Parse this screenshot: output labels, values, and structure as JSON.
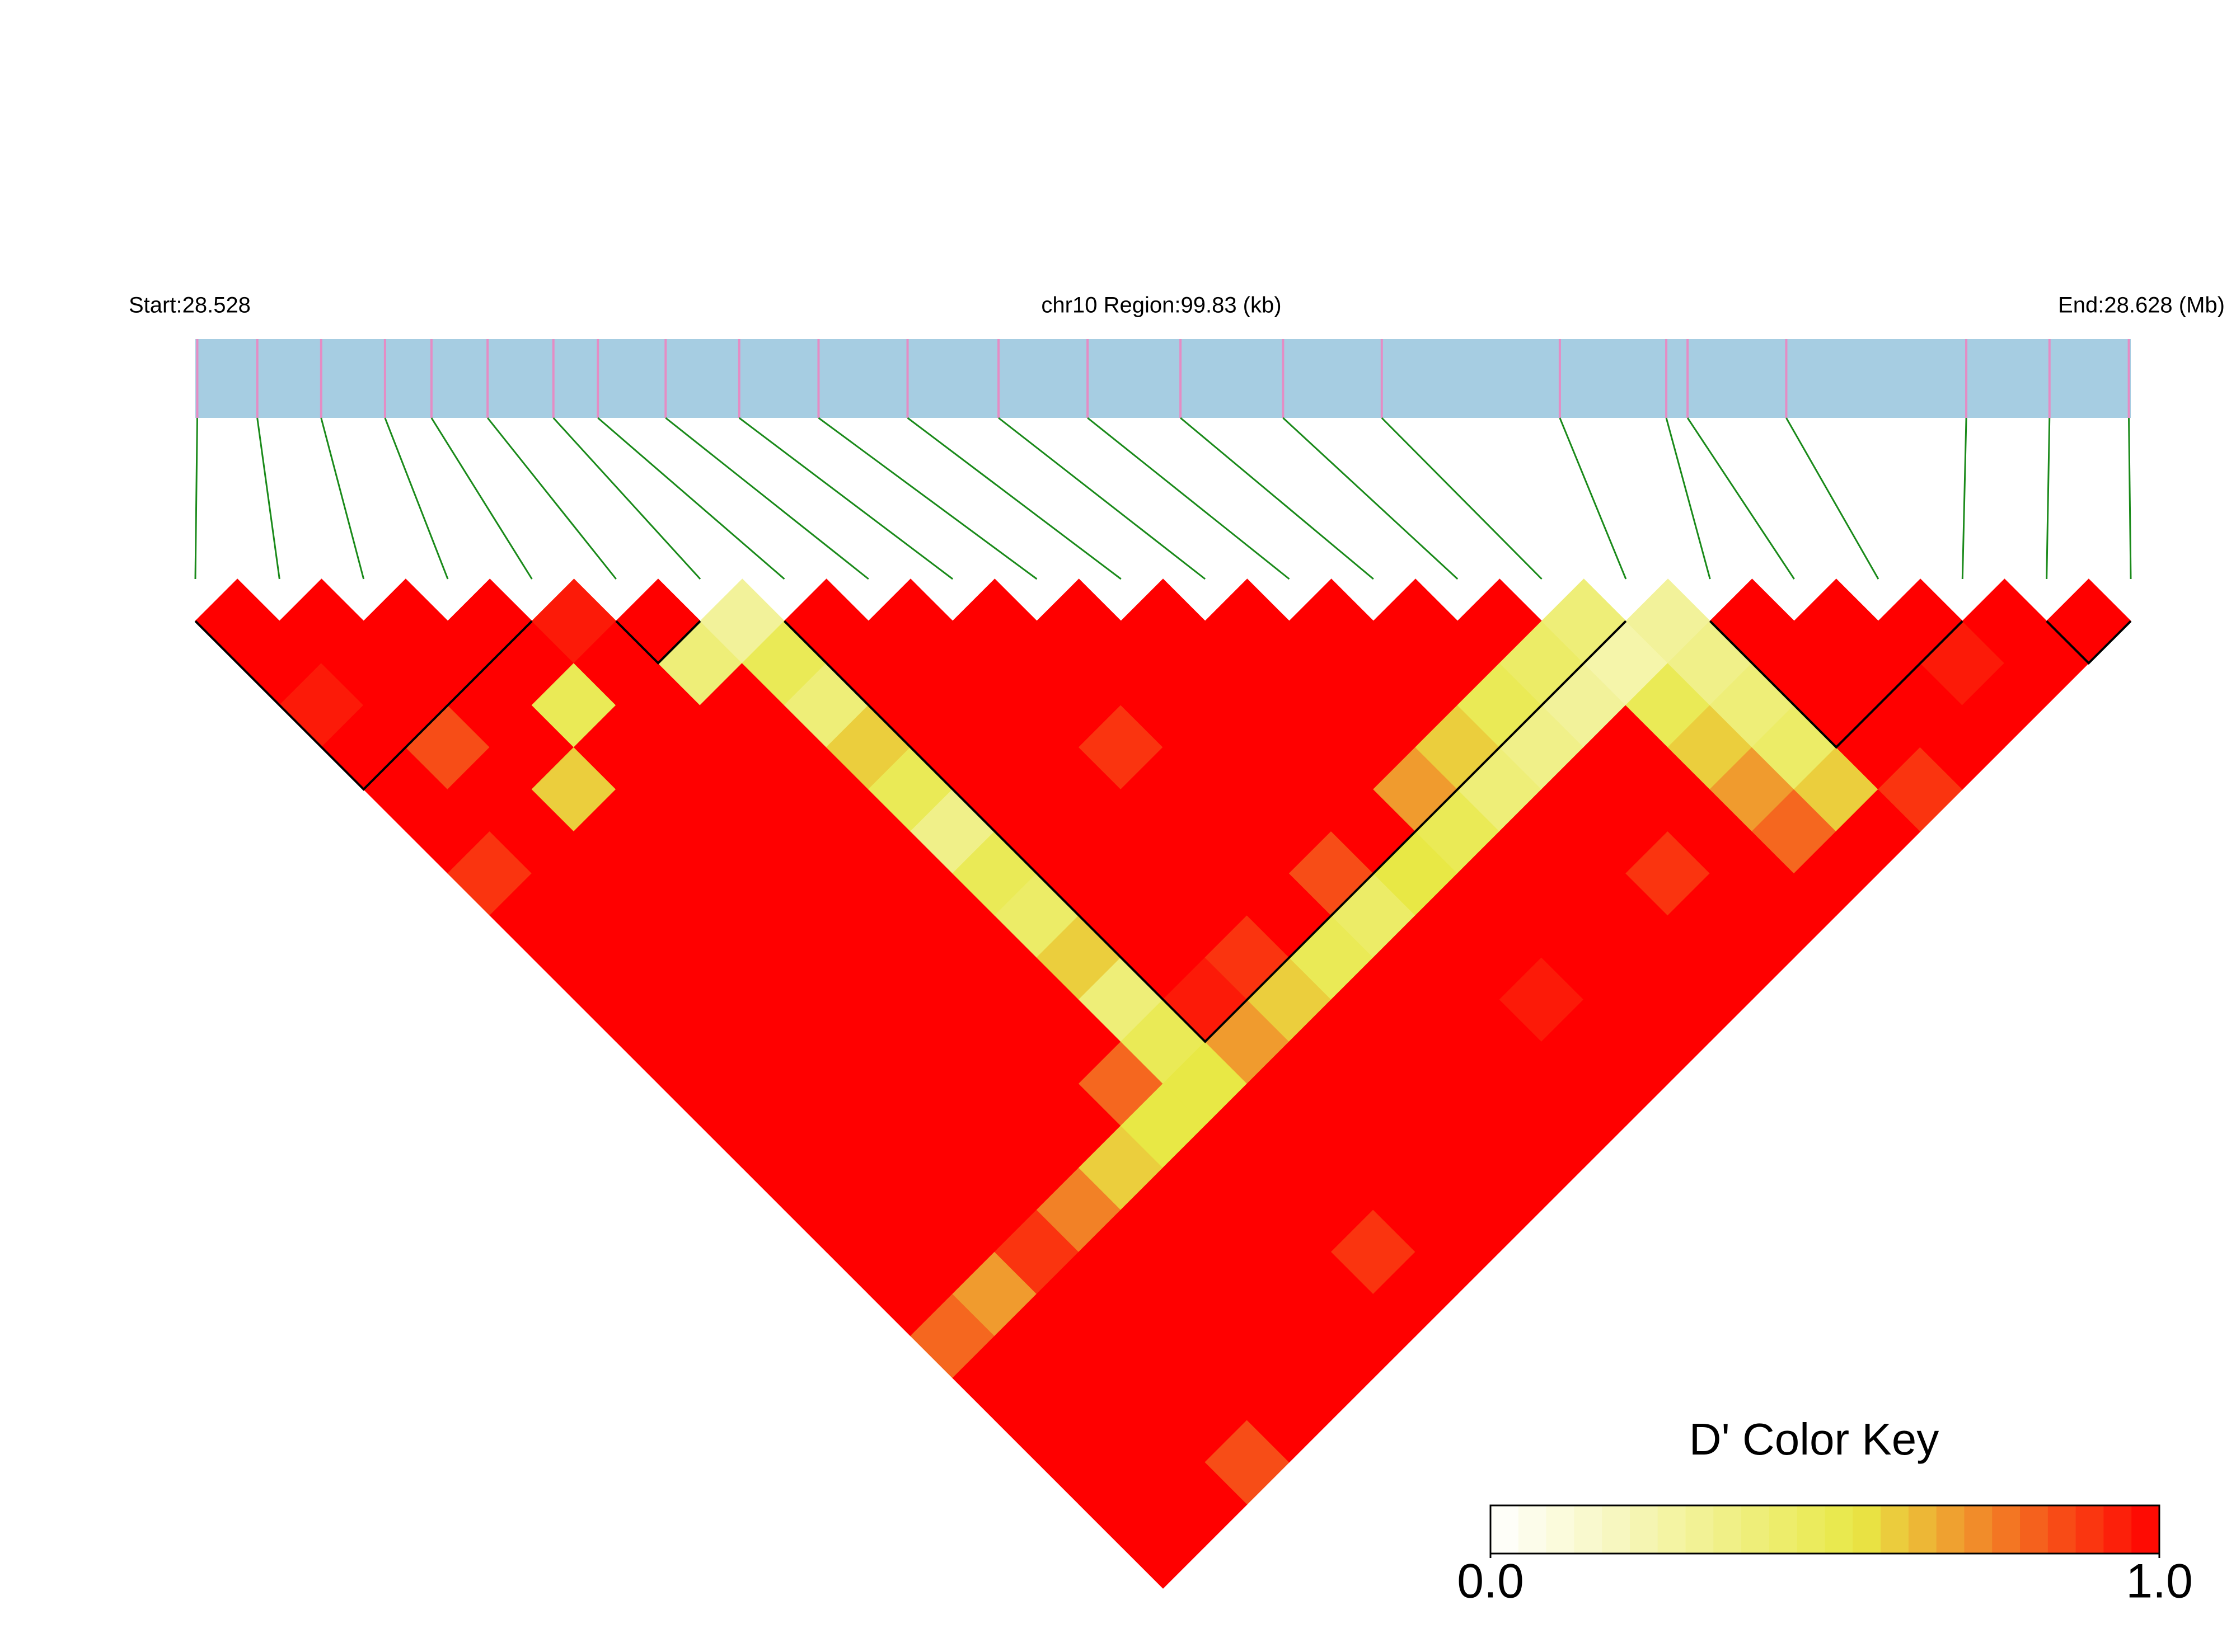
{
  "chart_data": {
    "type": "ld_heatmap",
    "start_label": "Start:28.528",
    "region_label": "chr10 Region:99.83 (kb)",
    "end_label": "End:28.628 (Mb)",
    "xlim": [
      28.528,
      28.628
    ],
    "track_color": "#a6cde2",
    "snp_color": "#e58cc4",
    "link_color": "#1a8a1a",
    "block_color": "#000000",
    "snp_positions": [
      28.5281,
      28.5312,
      28.5345,
      28.5378,
      28.5402,
      28.5431,
      28.5465,
      28.5488,
      28.5523,
      28.5561,
      28.5602,
      28.5648,
      28.5695,
      28.5741,
      28.5789,
      28.5842,
      28.5893,
      28.5985,
      28.604,
      28.6051,
      28.6102,
      28.6195,
      28.6238,
      28.6279
    ],
    "ld": [
      [
        1,
        1,
        0.95,
        1,
        1,
        1,
        0.9,
        1,
        1,
        1,
        1,
        1,
        1,
        1,
        1,
        1,
        1,
        0.8,
        1,
        1,
        1,
        1,
        1
      ],
      [
        1,
        1,
        1,
        0.85,
        1,
        1,
        1,
        1,
        1,
        1,
        1,
        1,
        1,
        1,
        1,
        1,
        0.7,
        1,
        1,
        1,
        1,
        1
      ],
      [
        1,
        1,
        1,
        1,
        0.6,
        1,
        1,
        1,
        1,
        1,
        1,
        1,
        1,
        1,
        1,
        0.9,
        1,
        1,
        1,
        1,
        0.85
      ],
      [
        1,
        1,
        0.5,
        1,
        1,
        1,
        1,
        1,
        1,
        1,
        1,
        1,
        1,
        1,
        0.75,
        1,
        1,
        1,
        1,
        1
      ],
      [
        0.95,
        1,
        1,
        1,
        1,
        1,
        1,
        1,
        1,
        1,
        1,
        1,
        1,
        0.6,
        1,
        1,
        1,
        1,
        1
      ],
      [
        1,
        0.4,
        1,
        1,
        1,
        1,
        1,
        1,
        1,
        1,
        1,
        0.8,
        0.55,
        1,
        1,
        1,
        1,
        1
      ],
      [
        0.3,
        0.5,
        0.4,
        0.6,
        0.5,
        0.35,
        0.5,
        0.45,
        0.6,
        0.4,
        0.5,
        0.55,
        1,
        1,
        1,
        0.9,
        1
      ],
      [
        1,
        1,
        1,
        1,
        1,
        1,
        1,
        1,
        1,
        0.95,
        0.7,
        1,
        1,
        1,
        1,
        1
      ],
      [
        1,
        1,
        1,
        1,
        1,
        1,
        1,
        1,
        0.9,
        0.6,
        1,
        1,
        1,
        1,
        1
      ],
      [
        1,
        1,
        1,
        0.9,
        1,
        1,
        1,
        1,
        0.5,
        1,
        1,
        1,
        1,
        1
      ],
      [
        1,
        1,
        1,
        1,
        1,
        1,
        0.85,
        0.45,
        1,
        1,
        1,
        1,
        1
      ],
      [
        1,
        1,
        1,
        1,
        1,
        1,
        0.55,
        1,
        1,
        0.95,
        1,
        1
      ],
      [
        1,
        1,
        1,
        1,
        0.7,
        0.5,
        1,
        1,
        1,
        1,
        1
      ],
      [
        1,
        1,
        1,
        0.6,
        0.4,
        1,
        1,
        1,
        1,
        1
      ],
      [
        1,
        1,
        0.5,
        0.35,
        1,
        1,
        0.9,
        1,
        1
      ],
      [
        1,
        0.45,
        0.3,
        1,
        1,
        1,
        1,
        1
      ],
      [
        0.4,
        0.25,
        0.5,
        0.6,
        0.7,
        0.8,
        1
      ],
      [
        0.3,
        0.35,
        0.4,
        0.45,
        0.6,
        1
      ],
      [
        1,
        1,
        1,
        1,
        0.9
      ],
      [
        1,
        1,
        1,
        1
      ],
      [
        1,
        0.95,
        1
      ],
      [
        1,
        1
      ],
      [
        1
      ]
    ],
    "blocks": [
      [
        0,
        4
      ],
      [
        5,
        6
      ],
      [
        7,
        17
      ],
      [
        18,
        21
      ],
      [
        22,
        23
      ]
    ],
    "color_key_title": "D' Color Key",
    "clim": [
      0,
      1
    ],
    "color_key_ticks": [
      {
        "value": 0,
        "label": "0.0"
      },
      {
        "value": 1,
        "label": "1.0"
      }
    ]
  }
}
